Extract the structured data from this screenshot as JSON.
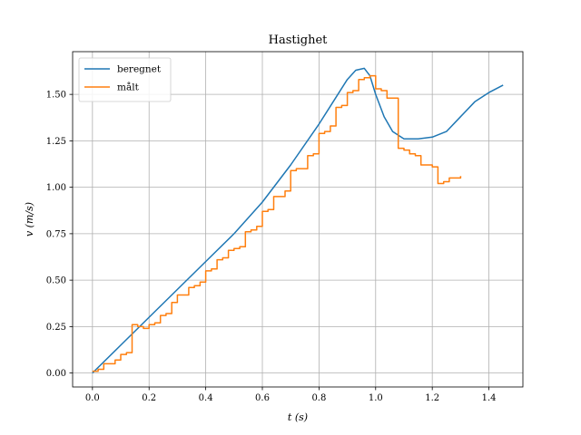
{
  "chart_data": {
    "type": "line",
    "title": "Hastighet",
    "xlabel": "t (s)",
    "ylabel": "v (m/s)",
    "xlim": [
      -0.07,
      1.52
    ],
    "ylim": [
      -0.075,
      1.73
    ],
    "xticks": [
      0.0,
      0.2,
      0.4,
      0.6,
      0.8,
      1.0,
      1.2,
      1.4
    ],
    "xtick_labels": [
      "0.0",
      "0.2",
      "0.4",
      "0.6",
      "0.8",
      "1.0",
      "1.2",
      "1.4"
    ],
    "yticks": [
      0.0,
      0.25,
      0.5,
      0.75,
      1.0,
      1.25,
      1.5
    ],
    "ytick_labels": [
      "0.00",
      "0.25",
      "0.50",
      "0.75",
      "1.00",
      "1.25",
      "1.50"
    ],
    "grid": true,
    "legend_position": "top-left",
    "series": [
      {
        "name": "beregnet",
        "color": "#1f77b4",
        "x": [
          0.0,
          0.1,
          0.2,
          0.3,
          0.4,
          0.5,
          0.6,
          0.7,
          0.8,
          0.85,
          0.9,
          0.93,
          0.96,
          0.98,
          1.0,
          1.03,
          1.06,
          1.1,
          1.15,
          1.2,
          1.25,
          1.3,
          1.35,
          1.4,
          1.45
        ],
        "y": [
          0.0,
          0.15,
          0.3,
          0.45,
          0.6,
          0.75,
          0.92,
          1.12,
          1.34,
          1.46,
          1.58,
          1.63,
          1.64,
          1.6,
          1.5,
          1.38,
          1.3,
          1.26,
          1.26,
          1.27,
          1.3,
          1.38,
          1.46,
          1.51,
          1.55
        ]
      },
      {
        "name": "målt",
        "color": "#ff7f0e",
        "step": true,
        "x": [
          0.0,
          0.02,
          0.04,
          0.06,
          0.08,
          0.1,
          0.12,
          0.14,
          0.16,
          0.18,
          0.2,
          0.22,
          0.24,
          0.26,
          0.28,
          0.3,
          0.32,
          0.34,
          0.36,
          0.38,
          0.4,
          0.42,
          0.44,
          0.46,
          0.48,
          0.5,
          0.52,
          0.54,
          0.56,
          0.58,
          0.6,
          0.62,
          0.64,
          0.66,
          0.68,
          0.7,
          0.72,
          0.74,
          0.76,
          0.78,
          0.8,
          0.82,
          0.84,
          0.86,
          0.88,
          0.9,
          0.92,
          0.94,
          0.96,
          0.98,
          1.0,
          1.02,
          1.04,
          1.06,
          1.08,
          1.1,
          1.12,
          1.14,
          1.16,
          1.18,
          1.2,
          1.22,
          1.24,
          1.26,
          1.28,
          1.3
        ],
        "y": [
          0.01,
          0.02,
          0.05,
          0.05,
          0.07,
          0.1,
          0.11,
          0.26,
          0.25,
          0.24,
          0.26,
          0.27,
          0.31,
          0.32,
          0.38,
          0.42,
          0.42,
          0.46,
          0.47,
          0.49,
          0.55,
          0.56,
          0.61,
          0.62,
          0.66,
          0.67,
          0.68,
          0.76,
          0.77,
          0.79,
          0.87,
          0.88,
          0.95,
          0.95,
          0.98,
          1.09,
          1.1,
          1.1,
          1.17,
          1.18,
          1.29,
          1.3,
          1.33,
          1.43,
          1.44,
          1.51,
          1.52,
          1.58,
          1.59,
          1.6,
          1.53,
          1.52,
          1.48,
          1.48,
          1.21,
          1.2,
          1.18,
          1.17,
          1.12,
          1.12,
          1.11,
          1.02,
          1.03,
          1.05,
          1.05,
          1.06
        ]
      }
    ]
  }
}
